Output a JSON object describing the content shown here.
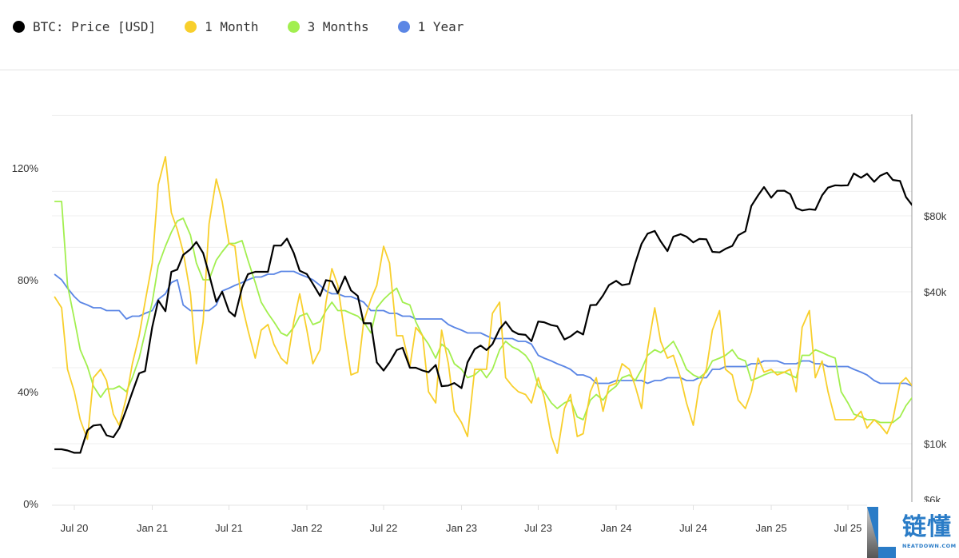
{
  "legend": [
    {
      "label": "BTC: Price [USD]",
      "color": "#000000"
    },
    {
      "label": "1 Month",
      "color": "#f8cf2c"
    },
    {
      "label": "3 Months",
      "color": "#a2ef4f"
    },
    {
      "label": "1 Year",
      "color": "#5b86e5"
    }
  ],
  "watermark": {
    "cn": "链懂",
    "en": "NEATDOWN.COM"
  },
  "chart_data": {
    "type": "line",
    "grid": true,
    "legend_position": "top-left",
    "left_axis": {
      "ticks": [
        "0%",
        "40%",
        "80%",
        "120%"
      ],
      "tick_values": [
        0,
        40,
        80,
        120
      ],
      "ylim": [
        0,
        140
      ]
    },
    "right_axis": {
      "scale": "log",
      "ticks": [
        "$80k",
        "$40k",
        "$10k",
        "$6k"
      ],
      "tick_values": [
        80000,
        40000,
        10000,
        6000
      ],
      "gridlines": [
        200000,
        100000,
        80000,
        60000,
        40000,
        20000,
        10000,
        8000
      ]
    },
    "xticks": [
      "Jul 20",
      "Jan 21",
      "Jul 21",
      "Jan 22",
      "Jul 22",
      "Jan 23",
      "Jul 23",
      "Jan 24",
      "Jul 24",
      "Jan 25",
      "Jul 25"
    ],
    "xtick_dates": [
      "2020-07-01",
      "2021-01-01",
      "2021-07-01",
      "2022-01-01",
      "2022-07-01",
      "2023-01-01",
      "2023-07-01",
      "2024-01-01",
      "2024-07-01",
      "2025-01-01",
      "2025-07-01"
    ],
    "x": [
      "2020-05-15",
      "2020-06-01",
      "2020-06-15",
      "2020-07-01",
      "2020-07-15",
      "2020-08-01",
      "2020-08-15",
      "2020-09-01",
      "2020-09-15",
      "2020-10-01",
      "2020-10-15",
      "2020-11-01",
      "2020-11-15",
      "2020-12-01",
      "2020-12-15",
      "2021-01-01",
      "2021-01-15",
      "2021-02-01",
      "2021-02-15",
      "2021-03-01",
      "2021-03-15",
      "2021-04-01",
      "2021-04-15",
      "2021-05-01",
      "2021-05-15",
      "2021-06-01",
      "2021-06-15",
      "2021-07-01",
      "2021-07-15",
      "2021-08-01",
      "2021-08-15",
      "2021-09-01",
      "2021-09-15",
      "2021-10-01",
      "2021-10-15",
      "2021-11-01",
      "2021-11-15",
      "2021-12-01",
      "2021-12-15",
      "2022-01-01",
      "2022-01-15",
      "2022-02-01",
      "2022-02-15",
      "2022-03-01",
      "2022-03-15",
      "2022-04-01",
      "2022-04-15",
      "2022-05-01",
      "2022-05-15",
      "2022-06-01",
      "2022-06-15",
      "2022-07-01",
      "2022-07-15",
      "2022-08-01",
      "2022-08-15",
      "2022-09-01",
      "2022-09-15",
      "2022-10-01",
      "2022-10-15",
      "2022-11-01",
      "2022-11-15",
      "2022-12-01",
      "2022-12-15",
      "2023-01-01",
      "2023-01-15",
      "2023-02-01",
      "2023-02-15",
      "2023-03-01",
      "2023-03-15",
      "2023-04-01",
      "2023-04-15",
      "2023-05-01",
      "2023-05-15",
      "2023-06-01",
      "2023-06-15",
      "2023-07-01",
      "2023-07-15",
      "2023-08-01",
      "2023-08-15",
      "2023-09-01",
      "2023-09-15",
      "2023-10-01",
      "2023-10-15",
      "2023-11-01",
      "2023-11-15",
      "2023-12-01",
      "2023-12-15",
      "2024-01-01",
      "2024-01-15",
      "2024-02-01",
      "2024-02-15",
      "2024-03-01",
      "2024-03-15",
      "2024-04-01",
      "2024-04-15",
      "2024-05-01",
      "2024-05-15",
      "2024-06-01",
      "2024-06-15",
      "2024-07-01",
      "2024-07-15",
      "2024-08-01",
      "2024-08-15",
      "2024-09-01",
      "2024-09-15",
      "2024-10-01",
      "2024-10-15",
      "2024-11-01",
      "2024-11-15",
      "2024-12-01",
      "2024-12-15",
      "2025-01-01",
      "2025-01-15",
      "2025-02-01",
      "2025-02-15",
      "2025-03-01",
      "2025-03-15",
      "2025-04-01",
      "2025-04-15",
      "2025-05-01",
      "2025-05-15",
      "2025-06-01",
      "2025-06-15",
      "2025-07-01",
      "2025-07-15",
      "2025-08-01",
      "2025-08-15",
      "2025-09-01",
      "2025-09-15",
      "2025-10-01",
      "2025-10-15",
      "2025-11-01",
      "2025-11-15",
      "2025-11-30"
    ],
    "series": [
      {
        "name": "BTC: Price [USD]",
        "axis": "right",
        "color": "#000000",
        "values": [
          9500,
          9500,
          9400,
          9200,
          9200,
          11300,
          11800,
          11900,
          10800,
          10600,
          11500,
          13700,
          16000,
          19000,
          19400,
          29000,
          37000,
          33500,
          48000,
          49000,
          56000,
          59000,
          63000,
          57000,
          47000,
          36500,
          40000,
          33500,
          32000,
          41500,
          47000,
          48000,
          48000,
          48000,
          61000,
          61000,
          65000,
          57000,
          48500,
          47000,
          43000,
          38500,
          44500,
          44000,
          39500,
          46000,
          40500,
          38500,
          30000,
          30000,
          21000,
          19500,
          21000,
          23500,
          24000,
          20000,
          20000,
          19500,
          19200,
          20500,
          16900,
          17000,
          17400,
          16600,
          21000,
          23700,
          24500,
          23500,
          24800,
          28500,
          30400,
          28000,
          27200,
          27000,
          25500,
          30500,
          30300,
          29500,
          29200,
          25900,
          26600,
          27900,
          27100,
          35400,
          35500,
          38700,
          42500,
          44200,
          42500,
          43000,
          52000,
          62000,
          68000,
          69700,
          63400,
          58000,
          66200,
          67700,
          66200,
          62800,
          64800,
          64600,
          57600,
          57300,
          59200,
          60800,
          67000,
          69500,
          87500,
          96400,
          104000,
          94400,
          100500,
          100600,
          97500,
          86000,
          84000,
          85000,
          84500,
          96500,
          103500,
          105700,
          105500,
          105700,
          117800,
          113300,
          117400,
          109200,
          115300,
          118600,
          111000,
          110000,
          95000,
          88000
        ]
      },
      {
        "name": "1 Month",
        "axis": "left",
        "color": "#f8cf2c",
        "values": [
          74,
          70,
          48,
          40,
          30,
          23,
          45,
          48,
          44,
          32,
          28,
          38,
          50,
          60,
          72,
          86,
          114,
          124,
          104,
          98,
          90,
          75,
          50,
          65,
          100,
          116,
          108,
          93,
          92,
          71,
          62,
          52,
          62,
          64,
          57,
          52,
          50,
          65,
          75,
          62,
          50,
          55,
          72,
          84,
          78,
          60,
          46,
          47,
          65,
          73,
          78,
          92,
          86,
          60,
          60,
          49,
          63,
          60,
          40,
          36,
          62,
          50,
          33,
          29,
          24,
          48,
          48,
          48,
          68,
          72,
          45,
          42,
          40,
          39,
          36,
          45,
          38,
          24,
          18,
          34,
          39,
          24,
          25,
          40,
          45,
          33,
          42,
          43,
          50,
          48,
          42,
          34,
          55,
          70,
          58,
          52,
          53,
          45,
          36,
          28,
          42,
          48,
          62,
          69,
          48,
          46,
          37,
          34,
          40,
          52,
          47,
          48,
          46,
          47,
          48,
          40,
          63,
          69,
          45,
          51,
          40,
          30,
          30,
          30,
          30,
          33,
          27,
          30,
          28,
          25,
          30,
          43,
          45,
          42
        ]
      },
      {
        "name": "3 Months",
        "axis": "left",
        "color": "#a2ef4f",
        "values": [
          108,
          108,
          78,
          66,
          55,
          49,
          42,
          38,
          41,
          41,
          42,
          40,
          45,
          52,
          61,
          72,
          85,
          92,
          97,
          101,
          102,
          96,
          86,
          80,
          80,
          87,
          90,
          93,
          93,
          94,
          87,
          79,
          72,
          68,
          65,
          61,
          60,
          63,
          67,
          68,
          64,
          65,
          69,
          72,
          69,
          69,
          68,
          67,
          65,
          61,
          70,
          73,
          75,
          77,
          72,
          71,
          65,
          60,
          57,
          52,
          57,
          55,
          50,
          48,
          45,
          46,
          48,
          45,
          48,
          55,
          58,
          56,
          55,
          53,
          50,
          42,
          40,
          36,
          34,
          36,
          37,
          31,
          30,
          37,
          39,
          37,
          40,
          42,
          45,
          46,
          44,
          48,
          53,
          55,
          54,
          56,
          58,
          53,
          48,
          46,
          45,
          47,
          51,
          52,
          53,
          55,
          52,
          51,
          44,
          45,
          46,
          47,
          47,
          47,
          46,
          45,
          53,
          53,
          55,
          54,
          53,
          52,
          40,
          36,
          32,
          31,
          30,
          30,
          29,
          29,
          29,
          31,
          35,
          38
        ]
      },
      {
        "name": "1 Year",
        "axis": "left",
        "color": "#5b86e5",
        "values": [
          82,
          80,
          77,
          74,
          72,
          71,
          70,
          70,
          69,
          69,
          69,
          66,
          67,
          67,
          68,
          69,
          73,
          75,
          79,
          80,
          71,
          69,
          69,
          69,
          69,
          71,
          76,
          77,
          78,
          79,
          80,
          81,
          81,
          82,
          82,
          83,
          83,
          83,
          82,
          81,
          80,
          78,
          76,
          75,
          75,
          74,
          74,
          73,
          72,
          69,
          69,
          69,
          68,
          68,
          67,
          67,
          66,
          66,
          66,
          66,
          66,
          64,
          63,
          62,
          61,
          61,
          61,
          60,
          59,
          59,
          59,
          59,
          58,
          58,
          57,
          53,
          52,
          51,
          50,
          49,
          48,
          46,
          46,
          45,
          43,
          43,
          43,
          44,
          44,
          44,
          44,
          44,
          43,
          44,
          44,
          45,
          45,
          45,
          44,
          44,
          45,
          45,
          48,
          48,
          49,
          49,
          49,
          49,
          50,
          50,
          51,
          51,
          51,
          50,
          50,
          50,
          51,
          51,
          50,
          50,
          49,
          49,
          49,
          49,
          48,
          47,
          46,
          44,
          43,
          43,
          43,
          43,
          43,
          42
        ]
      }
    ]
  }
}
